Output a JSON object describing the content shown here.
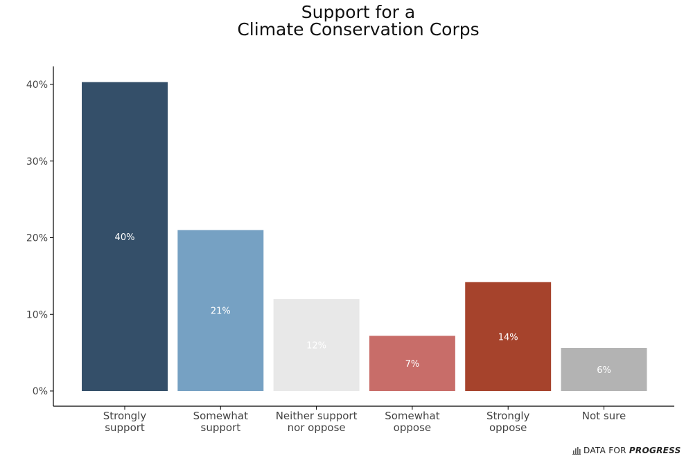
{
  "chart_data": {
    "type": "bar",
    "title_lines": [
      "Support for a",
      "Climate Conservation Corps"
    ],
    "xlabel": "",
    "ylabel": "",
    "ylim": [
      0,
      42.2
    ],
    "yticks": [
      0,
      10,
      20,
      30,
      40
    ],
    "ytick_labels": [
      "0%",
      "10%",
      "20%",
      "30%",
      "40%"
    ],
    "grid": false,
    "categories": [
      [
        "Strongly",
        "support"
      ],
      [
        "Somewhat",
        "support"
      ],
      [
        "Neither support",
        "nor oppose"
      ],
      [
        "Somewhat",
        "oppose"
      ],
      [
        "Strongly",
        "oppose"
      ],
      [
        "Not sure"
      ]
    ],
    "values": [
      40.3,
      21.0,
      12.0,
      7.2,
      14.2,
      5.6
    ],
    "data_labels": [
      "40%",
      "21%",
      "12%",
      "7%",
      "14%",
      "6%"
    ],
    "colors": [
      "#344f69",
      "#76a1c3",
      "#e8e8e8",
      "#c86d69",
      "#a6432c",
      "#b3b3b3"
    ],
    "label_color": "#ffffff"
  },
  "footer": {
    "brand_prefix": "DATA FOR",
    "brand_emphasis": "PROGRESS",
    "logo_icon": "bar-chart-icon"
  }
}
